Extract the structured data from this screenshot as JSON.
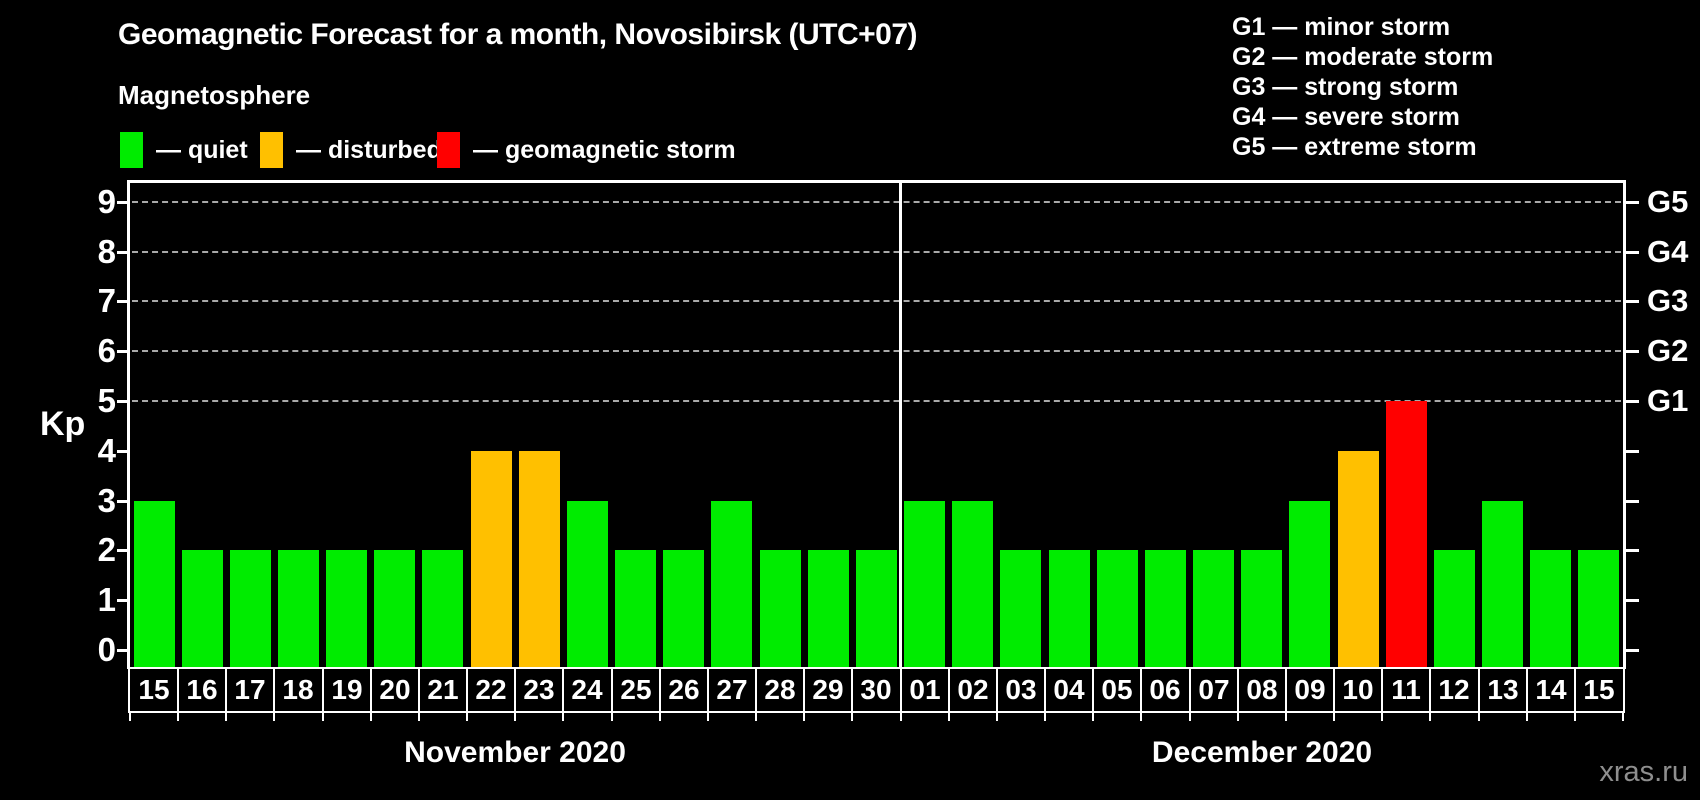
{
  "title": "Geomagnetic Forecast for a month, Novosibirsk (UTC+07)",
  "subtitle": "Magnetosphere",
  "legend": {
    "items": [
      {
        "key": "quiet",
        "swatch": "#00ec00",
        "label": "— quiet"
      },
      {
        "key": "disturbed",
        "swatch": "#ffc000",
        "label": "— disturbed"
      },
      {
        "key": "storm",
        "swatch": "#ff0000",
        "label": "— geomagnetic storm"
      }
    ]
  },
  "g_legend": [
    "G1 — minor storm",
    "G2 — moderate storm",
    "G3 — strong storm",
    "G4 — severe storm",
    "G5 — extreme storm"
  ],
  "watermark": "xras.ru",
  "chart_data": {
    "type": "bar",
    "ylabel": "Kp",
    "ylim": [
      0,
      9
    ],
    "yticks": [
      0,
      1,
      2,
      3,
      4,
      5,
      6,
      7,
      8,
      9
    ],
    "gridlines_at": [
      5,
      6,
      7,
      8,
      9
    ],
    "grid": "dashed horizontal at storm levels only",
    "right_axis": [
      {
        "kp": 5,
        "label": "G1"
      },
      {
        "kp": 6,
        "label": "G2"
      },
      {
        "kp": 7,
        "label": "G3"
      },
      {
        "kp": 8,
        "label": "G4"
      },
      {
        "kp": 9,
        "label": "G5"
      }
    ],
    "status_colors": {
      "quiet": "#00ec00",
      "disturbed": "#ffc000",
      "storm": "#ff0000"
    },
    "months": [
      {
        "label": "November 2020",
        "bars": [
          {
            "day": "15",
            "kp": 3,
            "status": "quiet"
          },
          {
            "day": "16",
            "kp": 2,
            "status": "quiet"
          },
          {
            "day": "17",
            "kp": 2,
            "status": "quiet"
          },
          {
            "day": "18",
            "kp": 2,
            "status": "quiet"
          },
          {
            "day": "19",
            "kp": 2,
            "status": "quiet"
          },
          {
            "day": "20",
            "kp": 2,
            "status": "quiet"
          },
          {
            "day": "21",
            "kp": 2,
            "status": "quiet"
          },
          {
            "day": "22",
            "kp": 4,
            "status": "disturbed"
          },
          {
            "day": "23",
            "kp": 4,
            "status": "disturbed"
          },
          {
            "day": "24",
            "kp": 3,
            "status": "quiet"
          },
          {
            "day": "25",
            "kp": 2,
            "status": "quiet"
          },
          {
            "day": "26",
            "kp": 2,
            "status": "quiet"
          },
          {
            "day": "27",
            "kp": 3,
            "status": "quiet"
          },
          {
            "day": "28",
            "kp": 2,
            "status": "quiet"
          },
          {
            "day": "29",
            "kp": 2,
            "status": "quiet"
          },
          {
            "day": "30",
            "kp": 2,
            "status": "quiet"
          }
        ]
      },
      {
        "label": "December 2020",
        "bars": [
          {
            "day": "01",
            "kp": 3,
            "status": "quiet"
          },
          {
            "day": "02",
            "kp": 3,
            "status": "quiet"
          },
          {
            "day": "03",
            "kp": 2,
            "status": "quiet"
          },
          {
            "day": "04",
            "kp": 2,
            "status": "quiet"
          },
          {
            "day": "05",
            "kp": 2,
            "status": "quiet"
          },
          {
            "day": "06",
            "kp": 2,
            "status": "quiet"
          },
          {
            "day": "07",
            "kp": 2,
            "status": "quiet"
          },
          {
            "day": "08",
            "kp": 2,
            "status": "quiet"
          },
          {
            "day": "09",
            "kp": 3,
            "status": "quiet"
          },
          {
            "day": "10",
            "kp": 4,
            "status": "disturbed"
          },
          {
            "day": "11",
            "kp": 5,
            "status": "storm"
          },
          {
            "day": "12",
            "kp": 2,
            "status": "quiet"
          },
          {
            "day": "13",
            "kp": 3,
            "status": "quiet"
          },
          {
            "day": "14",
            "kp": 2,
            "status": "quiet"
          },
          {
            "day": "15",
            "kp": 2,
            "status": "quiet"
          }
        ]
      }
    ]
  }
}
